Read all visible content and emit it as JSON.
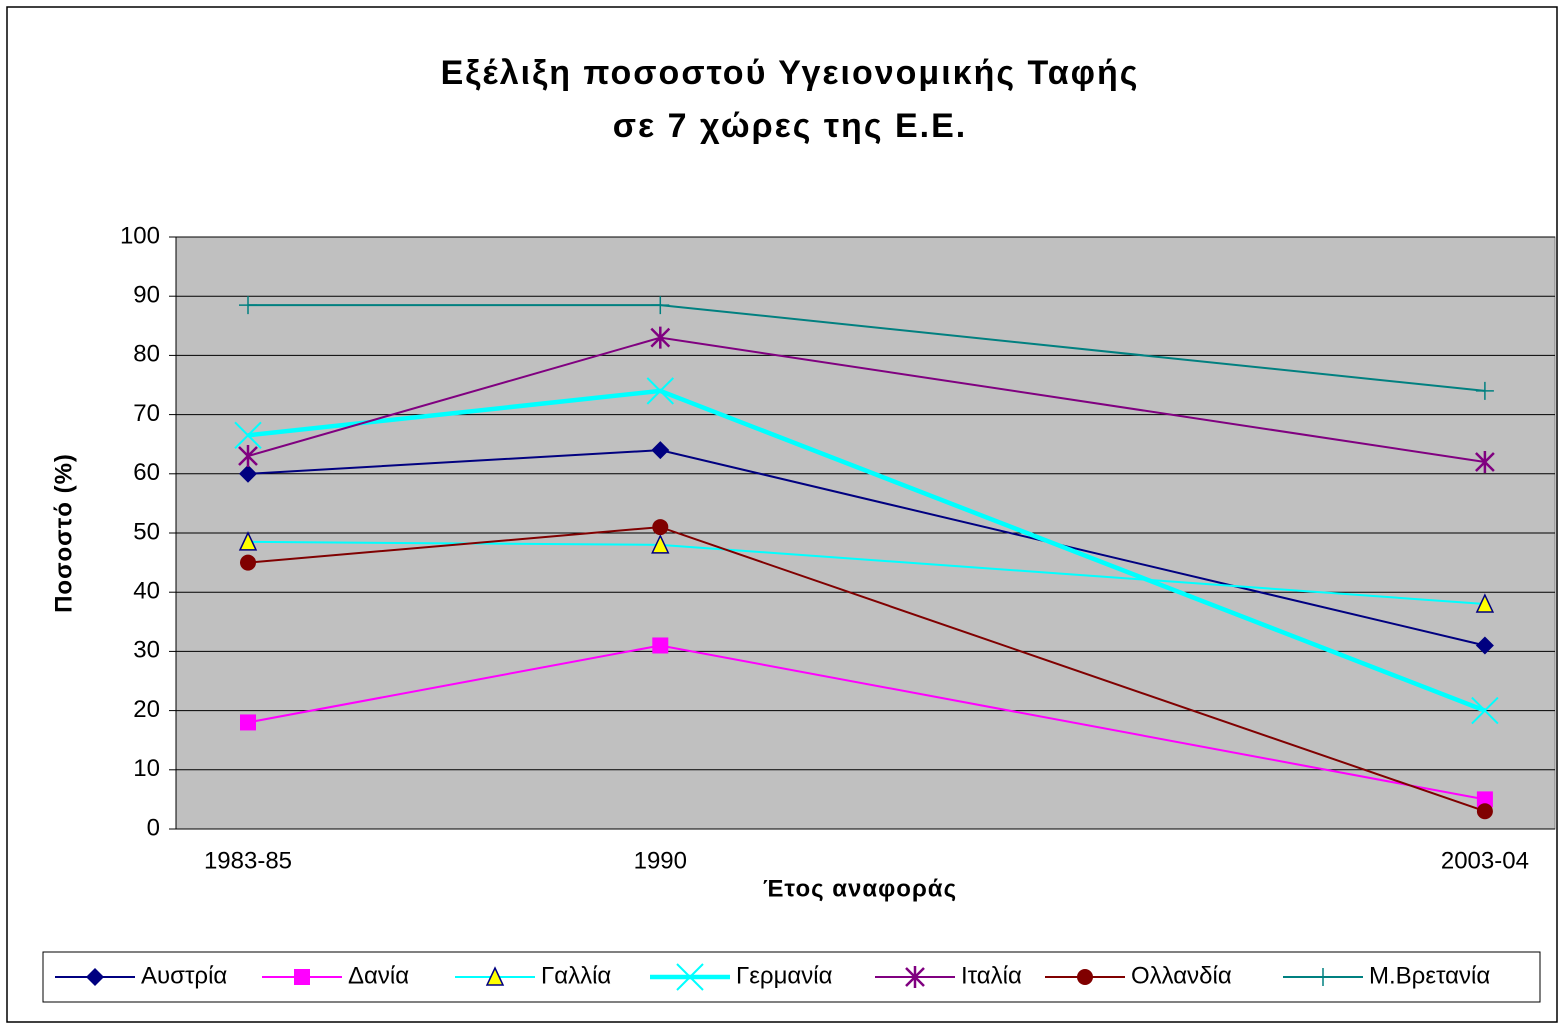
{
  "chart_data": {
    "type": "line",
    "title": [
      "Εξέλιξη ποσοστού Υγειονομικής Ταφής",
      "σε 7 χώρες της Ε.Ε."
    ],
    "x_label": "Έτος αναφοράς",
    "y_label": "Ποσοστό (%)",
    "categories": [
      "1983-85",
      "1990",
      "2003-04"
    ],
    "ylim": [
      0,
      100
    ],
    "yticks": [
      0,
      10,
      20,
      30,
      40,
      50,
      60,
      70,
      80,
      90,
      100
    ],
    "grid": true,
    "legend": "bottom",
    "series": [
      {
        "name": "Αυστρία",
        "color": "#000080",
        "marker": "diamond",
        "values": [
          60,
          64,
          31
        ]
      },
      {
        "name": "Δανία",
        "color": "#ff00ff",
        "marker": "square",
        "values": [
          18,
          31,
          5
        ]
      },
      {
        "name": "Γαλλία",
        "color": "#00ffff",
        "marker": "triangle",
        "values": [
          48.5,
          48,
          38
        ]
      },
      {
        "name": "Γερμανία",
        "color": "#00ffff",
        "marker": "x",
        "values": [
          66.5,
          74,
          20
        ]
      },
      {
        "name": "Ιταλία",
        "color": "#800080",
        "marker": "asterisk",
        "values": [
          63,
          83,
          62
        ]
      },
      {
        "name": "Ολλανδία",
        "color": "#800000",
        "marker": "circle",
        "values": [
          45,
          51,
          3
        ]
      },
      {
        "name": "Μ.Βρετανία",
        "color": "#008080",
        "marker": "plus",
        "values": [
          88.5,
          88.5,
          74
        ]
      }
    ]
  }
}
